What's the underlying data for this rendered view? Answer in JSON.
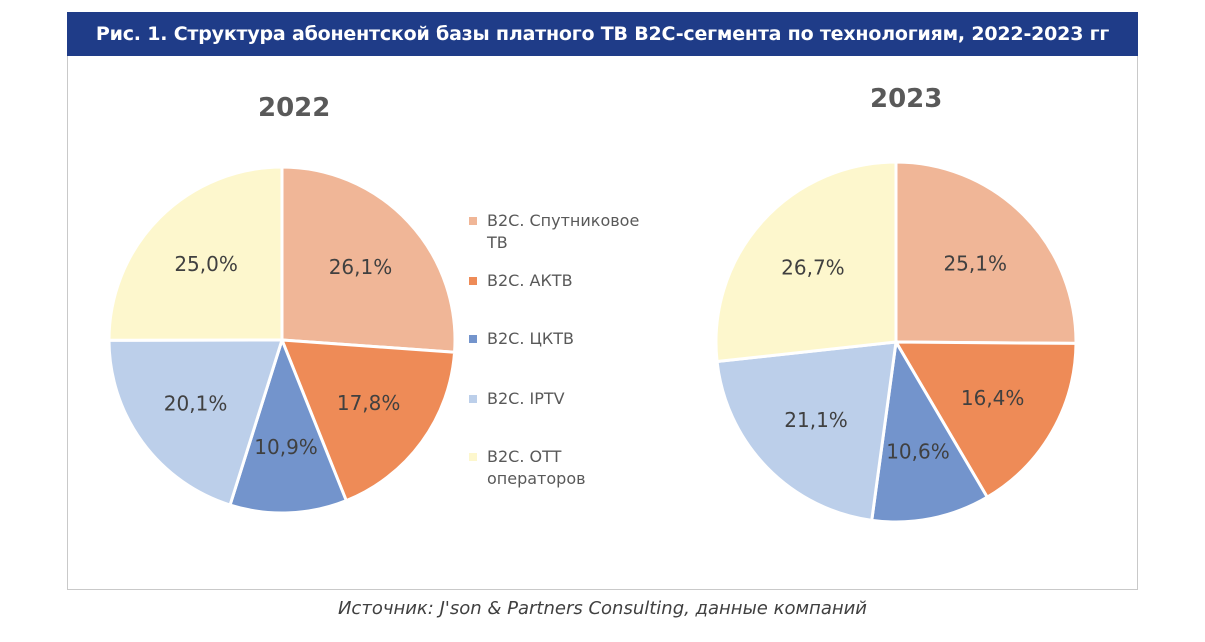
{
  "title": "Рис. 1. Структура абонентской базы платного ТВ B2C-сегмента по технологиям, 2022-2023 гг",
  "source": "Источник: J'son & Partners Consulting, данные компаний",
  "legend": {
    "placement": "center",
    "items": [
      {
        "label": "B2C. Спутниковое ТВ",
        "color": "#f0b697"
      },
      {
        "label": "B2C. АКТВ",
        "color": "#ee8b57"
      },
      {
        "label": "B2C. ЦКТВ",
        "color": "#7394cc"
      },
      {
        "label": "B2C. IPTV",
        "color": "#bccfea"
      },
      {
        "label": "B2C. OTT операторов",
        "color": "#fdf7cd"
      }
    ]
  },
  "chart_data": [
    {
      "type": "pie",
      "title": "2022",
      "categories": [
        "B2C. Спутниковое ТВ",
        "B2C. АКТВ",
        "B2C. ЦКТВ",
        "B2C. IPTV",
        "B2C. OTT операторов"
      ],
      "values": [
        26.1,
        17.8,
        10.9,
        20.1,
        25.0
      ],
      "labels": [
        "26,1%",
        "17,8%",
        "10,9%",
        "20,1%",
        "25,0%"
      ]
    },
    {
      "type": "pie",
      "title": "2023",
      "categories": [
        "B2C. Спутниковое ТВ",
        "B2C. АКТВ",
        "B2C. ЦКТВ",
        "B2C. IPTV",
        "B2C. OTT операторов"
      ],
      "values": [
        25.1,
        16.4,
        10.6,
        21.1,
        26.7
      ],
      "labels": [
        "25,1%",
        "16,4%",
        "10,6%",
        "21,1%",
        "26,7%"
      ]
    }
  ]
}
